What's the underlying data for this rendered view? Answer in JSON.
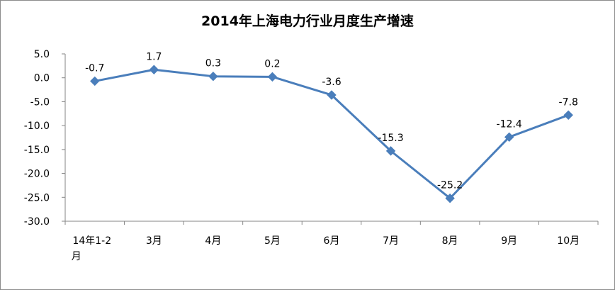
{
  "chart_data": {
    "type": "line",
    "title": "2014年上海电力行业月度生产增速",
    "categories": [
      "14年1-2月",
      "3月",
      "4月",
      "5月",
      "6月",
      "7月",
      "8月",
      "9月",
      "10月"
    ],
    "series": [
      {
        "values": [
          -0.7,
          1.7,
          0.3,
          0.2,
          -3.6,
          -15.3,
          -25.2,
          -12.4,
          -7.8
        ]
      }
    ],
    "data_labels": [
      "-0.7",
      "1.7",
      "0.3",
      "0.2",
      "-3.6",
      "-15.3",
      "-25.2",
      "-12.4",
      "-7.8"
    ],
    "ylim": [
      -30,
      5
    ],
    "yticks": [
      5,
      0,
      -5,
      -10,
      -15,
      -20,
      -25,
      -30
    ],
    "ytick_labels": [
      "5.0",
      "0.0",
      "-5.0",
      "-10.0",
      "-15.0",
      "-20.0",
      "-25.0",
      "-30.0"
    ],
    "grid": false,
    "legend": "none",
    "colors": {
      "series": "#4a7ebb",
      "axis": "#868686",
      "frame": "#8c8c8c"
    }
  }
}
